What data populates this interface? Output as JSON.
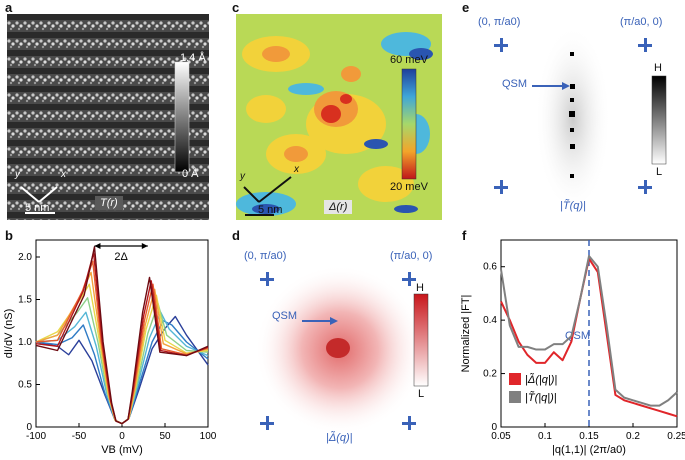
{
  "panels": {
    "a": {
      "letter": "a",
      "scalebar_text": "5 nm",
      "map_label": "T(r)",
      "colorbar_top": "1.4 Å",
      "colorbar_bottom": "0 Å",
      "axis_y": "y",
      "axis_x": "x"
    },
    "b": {
      "letter": "b"
    },
    "c": {
      "letter": "c",
      "scalebar_text": "5 nm",
      "map_label": "Δ(r)",
      "colorbar_top": "60 meV",
      "colorbar_bottom": "20 meV",
      "axis_y": "y",
      "axis_x": "x"
    },
    "d": {
      "letter": "d",
      "corner_tl": "(0, π/a0)",
      "corner_tr": "(π/a0, 0)",
      "qsm": "QSM",
      "colorbar_top": "H",
      "colorbar_bottom": "L",
      "map_label": "|Δ̃(q)|"
    },
    "e": {
      "letter": "e",
      "corner_tl": "(0, π/a0)",
      "corner_tr": "(π/a0, 0)",
      "qsm": "QSM",
      "colorbar_top": "H",
      "colorbar_bottom": "L",
      "map_label": "|T̃(q)|"
    },
    "f": {
      "letter": "f"
    }
  },
  "colors": {
    "accent_blue": "#3a62b8",
    "red_series": "#e0262a",
    "gray_series": "#808080"
  },
  "chart_data": [
    {
      "panel": "b",
      "type": "line",
      "xlabel": "VB (mV)",
      "ylabel": "dI/dV (nS)",
      "xlim": [
        -100,
        100
      ],
      "ylim": [
        0,
        2.2
      ],
      "xticks": [
        "-100",
        "-50",
        "0",
        "50",
        "100"
      ],
      "yticks": [
        "0",
        "0.5",
        "1.0",
        "1.5",
        "2.0"
      ],
      "annotation": "2Δ",
      "series": [
        {
          "color": "#2a3f9a",
          "x": [
            -100,
            -75,
            -62,
            -50,
            -35,
            -20,
            -8,
            0,
            8,
            20,
            35,
            50,
            62,
            75,
            100
          ],
          "y": [
            1.0,
            0.95,
            0.85,
            1.02,
            0.78,
            0.38,
            0.08,
            0.04,
            0.1,
            0.45,
            0.92,
            1.16,
            1.3,
            1.08,
            0.73
          ]
        },
        {
          "color": "#2f7bc5",
          "x": [
            -100,
            -75,
            -58,
            -45,
            -32,
            -20,
            -8,
            0,
            8,
            20,
            35,
            48,
            58,
            75,
            100
          ],
          "y": [
            1.0,
            0.97,
            1.05,
            1.2,
            0.85,
            0.4,
            0.08,
            0.04,
            0.1,
            0.5,
            1.0,
            1.25,
            1.2,
            1.0,
            0.8
          ]
        },
        {
          "color": "#54b6d6",
          "x": [
            -100,
            -75,
            -55,
            -42,
            -30,
            -18,
            -8,
            0,
            8,
            18,
            32,
            45,
            55,
            75,
            100
          ],
          "y": [
            1.0,
            1.02,
            1.18,
            1.35,
            0.95,
            0.4,
            0.08,
            0.04,
            0.1,
            0.48,
            1.05,
            1.35,
            1.15,
            0.95,
            0.84
          ]
        },
        {
          "color": "#8ed08a",
          "x": [
            -100,
            -75,
            -52,
            -40,
            -28,
            -17,
            -8,
            0,
            8,
            17,
            30,
            42,
            52,
            75,
            100
          ],
          "y": [
            1.0,
            1.08,
            1.35,
            1.52,
            1.0,
            0.4,
            0.08,
            0.04,
            0.1,
            0.48,
            1.1,
            1.45,
            1.08,
            0.9,
            0.88
          ]
        },
        {
          "color": "#e7d84a",
          "x": [
            -100,
            -75,
            -50,
            -38,
            -26,
            -16,
            -8,
            0,
            8,
            16,
            28,
            40,
            50,
            75,
            100
          ],
          "y": [
            1.0,
            1.12,
            1.48,
            1.68,
            1.0,
            0.38,
            0.08,
            0.04,
            0.1,
            0.48,
            1.15,
            1.55,
            1.02,
            0.87,
            0.9
          ]
        },
        {
          "color": "#f4a23c",
          "x": [
            -100,
            -75,
            -48,
            -36,
            -25,
            -15,
            -8,
            0,
            8,
            15,
            27,
            38,
            48,
            75,
            100
          ],
          "y": [
            1.0,
            1.08,
            1.55,
            1.82,
            1.02,
            0.36,
            0.08,
            0.04,
            0.1,
            0.46,
            1.2,
            1.62,
            0.98,
            0.86,
            0.92
          ]
        },
        {
          "color": "#e55b2d",
          "x": [
            -100,
            -75,
            -46,
            -34,
            -24,
            -14,
            -7,
            0,
            7,
            14,
            26,
            36,
            46,
            75,
            100
          ],
          "y": [
            1.0,
            1.02,
            1.6,
            1.95,
            1.0,
            0.33,
            0.07,
            0.04,
            0.09,
            0.45,
            1.25,
            1.68,
            0.92,
            0.85,
            0.93
          ]
        },
        {
          "color": "#b4161b",
          "x": [
            -100,
            -75,
            -45,
            -33,
            -23,
            -13,
            -7,
            0,
            7,
            13,
            25,
            34,
            45,
            75,
            100
          ],
          "y": [
            0.98,
            0.95,
            1.6,
            2.05,
            1.0,
            0.3,
            0.07,
            0.04,
            0.09,
            0.44,
            1.3,
            1.72,
            0.9,
            0.84,
            0.94
          ]
        },
        {
          "color": "#6e0b12",
          "x": [
            -100,
            -75,
            -44,
            -32,
            -22,
            -12,
            -7,
            0,
            7,
            12,
            24,
            32,
            44,
            75,
            100
          ],
          "y": [
            0.96,
            0.9,
            1.55,
            2.12,
            1.0,
            0.28,
            0.07,
            0.04,
            0.09,
            0.42,
            1.35,
            1.76,
            0.88,
            0.84,
            0.95
          ]
        }
      ]
    },
    {
      "panel": "f",
      "type": "line",
      "xlabel": "|q(1,1)| (2π/a0)",
      "ylabel": "Normalized |FT|",
      "xlim": [
        0.05,
        0.25
      ],
      "ylim": [
        0,
        0.7
      ],
      "xticks": [
        "0.05",
        "0.1",
        "0.15",
        "0.2",
        "0.25"
      ],
      "yticks": [
        "0",
        "0.2",
        "0.4",
        "0.6"
      ],
      "vline_x": 0.15,
      "vline_label": "QSM",
      "series": [
        {
          "name": "|Δ̃(|q|)|",
          "color": "#e0262a",
          "x": [
            0.05,
            0.06,
            0.07,
            0.08,
            0.09,
            0.1,
            0.11,
            0.12,
            0.13,
            0.14,
            0.15,
            0.16,
            0.17,
            0.18,
            0.19,
            0.2,
            0.21,
            0.22,
            0.23,
            0.24,
            0.25
          ],
          "y": [
            0.47,
            0.4,
            0.32,
            0.27,
            0.24,
            0.24,
            0.28,
            0.25,
            0.32,
            0.48,
            0.63,
            0.58,
            0.35,
            0.12,
            0.1,
            0.09,
            0.08,
            0.07,
            0.06,
            0.05,
            0.04
          ]
        },
        {
          "name": "|T̃(|q|)|",
          "color": "#808080",
          "x": [
            0.05,
            0.06,
            0.07,
            0.08,
            0.09,
            0.1,
            0.11,
            0.12,
            0.13,
            0.14,
            0.15,
            0.16,
            0.17,
            0.18,
            0.19,
            0.2,
            0.21,
            0.22,
            0.23,
            0.24,
            0.25
          ],
          "y": [
            0.59,
            0.38,
            0.3,
            0.3,
            0.29,
            0.29,
            0.31,
            0.31,
            0.34,
            0.48,
            0.64,
            0.6,
            0.38,
            0.14,
            0.11,
            0.1,
            0.09,
            0.08,
            0.08,
            0.1,
            0.13
          ]
        }
      ]
    }
  ]
}
